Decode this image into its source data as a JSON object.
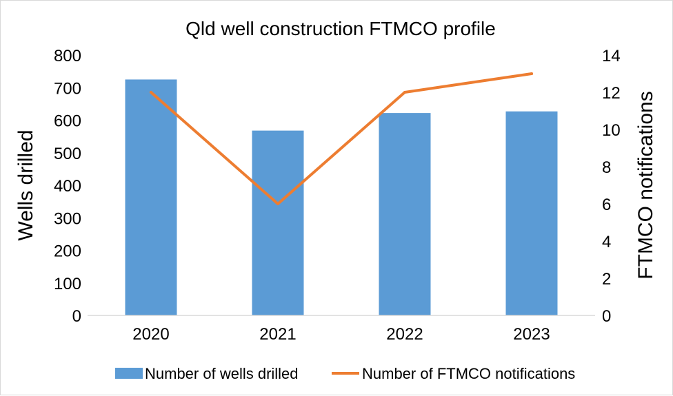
{
  "chart_data": {
    "type": "bar",
    "title": "Qld well construction FTMCO profile",
    "categories": [
      "2020",
      "2021",
      "2022",
      "2023"
    ],
    "series": [
      {
        "name": "Number of wells drilled",
        "type": "bar",
        "axis": "left",
        "values": [
          725,
          568,
          622,
          627
        ],
        "color": "#5b9bd5"
      },
      {
        "name": "Number of FTMCO notifications",
        "type": "line",
        "axis": "right",
        "values": [
          12,
          6,
          12,
          13
        ],
        "color": "#ed7d31"
      }
    ],
    "y_left": {
      "label": "Wells drilled",
      "ylim": [
        0,
        800
      ],
      "ticks": [
        "0",
        "100",
        "200",
        "300",
        "400",
        "500",
        "600",
        "700",
        "800"
      ]
    },
    "y_right": {
      "label": "FTMCO notifications",
      "ylim": [
        0,
        14
      ],
      "ticks": [
        "0",
        "2",
        "4",
        "6",
        "8",
        "10",
        "12",
        "14"
      ]
    },
    "grid": false,
    "legend": "bottom"
  }
}
